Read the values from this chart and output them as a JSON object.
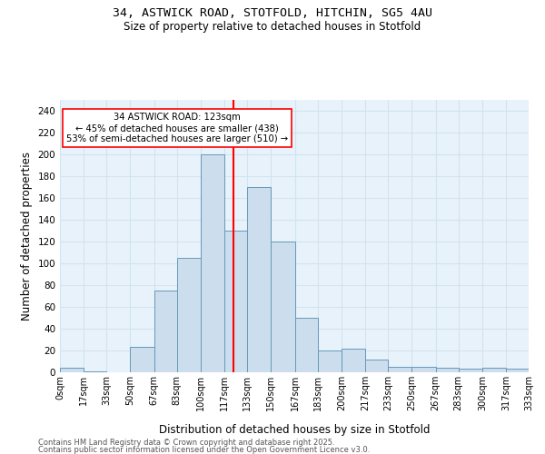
{
  "title1": "34, ASTWICK ROAD, STOTFOLD, HITCHIN, SG5 4AU",
  "title2": "Size of property relative to detached houses in Stotfold",
  "xlabel": "Distribution of detached houses by size in Stotfold",
  "ylabel": "Number of detached properties",
  "bin_edges": [
    0,
    17,
    33,
    50,
    67,
    83,
    100,
    117,
    133,
    150,
    167,
    183,
    200,
    217,
    233,
    250,
    267,
    283,
    300,
    317,
    333
  ],
  "bar_heights": [
    4,
    1,
    0,
    23,
    75,
    105,
    200,
    130,
    170,
    120,
    50,
    20,
    22,
    12,
    5,
    5,
    4,
    3,
    4,
    3
  ],
  "bar_color": "#ccdded",
  "bar_edge_color": "#6699bb",
  "grid_color": "#d0e4f0",
  "bg_color": "#e8f2fa",
  "vline_x": 123,
  "vline_color": "red",
  "annotation_text": "34 ASTWICK ROAD: 123sqm\n← 45% of detached houses are smaller (438)\n53% of semi-detached houses are larger (510) →",
  "annotation_box_color": "white",
  "annotation_box_edge": "red",
  "ylim": [
    0,
    250
  ],
  "yticks": [
    0,
    20,
    40,
    60,
    80,
    100,
    120,
    140,
    160,
    180,
    200,
    220,
    240
  ],
  "footer1": "Contains HM Land Registry data © Crown copyright and database right 2025.",
  "footer2": "Contains public sector information licensed under the Open Government Licence v3.0."
}
